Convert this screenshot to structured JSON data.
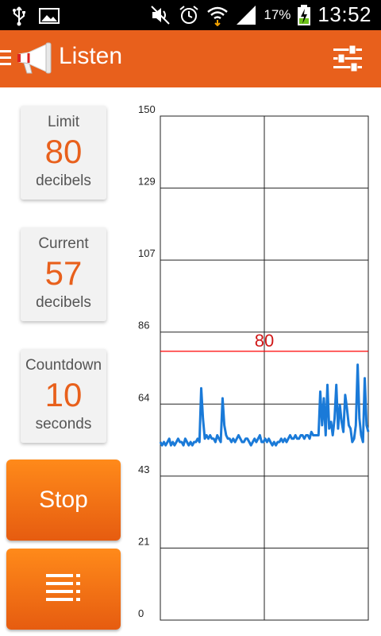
{
  "status_bar": {
    "battery_percent": "17%",
    "clock": "13:52",
    "icons": [
      "usb-icon",
      "image-icon",
      "mute-icon",
      "alarm-icon",
      "wifi-icon",
      "signal-icon",
      "battery-charging-icon"
    ]
  },
  "action_bar": {
    "title": "Listen",
    "menu_icon": "hamburger-icon",
    "logo_icon": "megaphone-icon",
    "settings_icon": "sliders-icon",
    "color": "#e8601c"
  },
  "cards": {
    "limit": {
      "label": "Limit",
      "value": "80",
      "unit": "decibels"
    },
    "current": {
      "label": "Current",
      "value": "57",
      "unit": "decibels"
    },
    "countdown": {
      "label": "Countdown",
      "value": "10",
      "unit": "seconds"
    }
  },
  "buttons": {
    "stop": "Stop",
    "list_icon": "list-icon"
  },
  "chart_data": {
    "type": "line",
    "ylim": [
      0,
      150
    ],
    "yticks": [
      "0",
      "21",
      "43",
      "64",
      "86",
      "107",
      "129",
      "150"
    ],
    "threshold": {
      "value": 80,
      "label": "80",
      "color": "#ff0000"
    },
    "series_color": "#1a7ad8",
    "grid": true,
    "values": [
      53,
      52,
      53,
      52,
      53,
      54,
      52,
      53,
      52,
      53,
      54,
      53,
      53,
      52,
      54,
      53,
      52,
      53,
      52,
      53,
      53,
      54,
      53,
      69,
      60,
      54,
      55,
      54,
      55,
      54,
      54,
      53,
      55,
      54,
      53,
      66,
      58,
      55,
      54,
      54,
      53,
      54,
      53,
      54,
      55,
      54,
      53,
      53,
      54,
      54,
      53,
      52,
      53,
      54,
      53,
      54,
      55,
      53,
      53,
      54,
      53,
      54,
      53,
      52,
      53,
      52,
      53,
      53,
      54,
      53,
      54,
      53,
      54,
      55,
      54,
      54,
      55,
      54,
      54,
      55,
      55,
      54,
      55,
      55,
      54,
      56,
      55,
      55,
      55,
      55,
      68,
      58,
      66,
      55,
      70,
      57,
      59,
      55,
      60,
      70,
      57,
      64,
      59,
      56,
      67,
      63,
      58,
      57,
      53,
      54,
      58,
      76,
      60,
      55,
      53,
      72,
      58,
      56
    ]
  }
}
